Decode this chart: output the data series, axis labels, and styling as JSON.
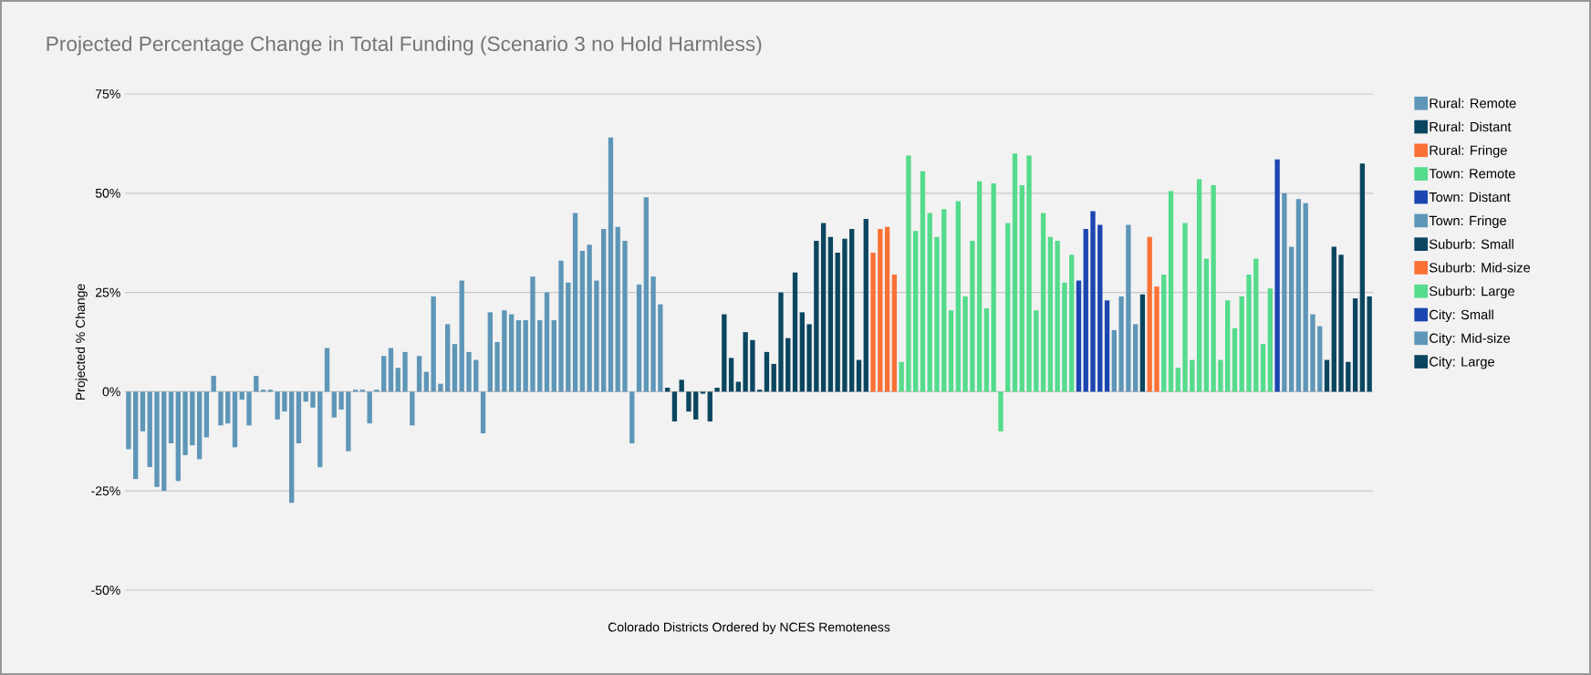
{
  "chart_data": {
    "type": "bar",
    "title": "Projected Percentage Change in Total Funding (Scenario 3 no Hold Harmless)",
    "xlabel": "Colorado Districts Ordered by NCES Remoteness",
    "ylabel": "Projected % Change",
    "categories": [
      null,
      null,
      null,
      null,
      null,
      null,
      null,
      null,
      null,
      null,
      null,
      null,
      null,
      null,
      null,
      null,
      null,
      null,
      null,
      null,
      null,
      null,
      null,
      null,
      null,
      null,
      null,
      null,
      null,
      null,
      null,
      null,
      null,
      null,
      null,
      null,
      null,
      null,
      null,
      null,
      null,
      null,
      null,
      null,
      null,
      null,
      null,
      null,
      null,
      null,
      null,
      null,
      null,
      null,
      null,
      null,
      null,
      null,
      null,
      null,
      null,
      null,
      null,
      null,
      null,
      null,
      null,
      null,
      null,
      null,
      null,
      null,
      null,
      null,
      null,
      null,
      null,
      null,
      null,
      null,
      null,
      null,
      null,
      null,
      null,
      null,
      null,
      null,
      null,
      null,
      null,
      null,
      null,
      null,
      null,
      null,
      null,
      null,
      null,
      null,
      null,
      null,
      null,
      null,
      null,
      null,
      null,
      null,
      null,
      null,
      null,
      null,
      null,
      null,
      null,
      null,
      null,
      null,
      null,
      null,
      null,
      null,
      null,
      null,
      null,
      null,
      null,
      null,
      null,
      null,
      null,
      null,
      null,
      null,
      null,
      null,
      null,
      null,
      null,
      null,
      null,
      null,
      null,
      null,
      null,
      null,
      null,
      null,
      null,
      null,
      null,
      null,
      null,
      null,
      null,
      null,
      null,
      null,
      null,
      null,
      null,
      null,
      null,
      null,
      null,
      null,
      null,
      null,
      null,
      null,
      null,
      null,
      null,
      null,
      null,
      null
    ],
    "ylim": [
      -50,
      75
    ],
    "yticks": [
      {
        "value": -50,
        "label": "-50%"
      },
      {
        "value": -25,
        "label": "-25%"
      },
      {
        "value": 0,
        "label": "0%"
      },
      {
        "value": 25,
        "label": "25%"
      },
      {
        "value": 50,
        "label": "50%"
      },
      {
        "value": 75,
        "label": "75%"
      }
    ],
    "grid": "y",
    "legend": "right",
    "series": [
      {
        "name": "Rural: Remote",
        "color": "#5e96b8",
        "values": [
          -14.5,
          -22,
          -10,
          -19,
          -24,
          -25,
          -13,
          -22.5,
          -16,
          -13.5,
          -17,
          -11.5,
          4,
          -8.5,
          -8,
          -14,
          -2,
          -8.5,
          4,
          0.5,
          0.5,
          -7,
          -5,
          -28,
          -13,
          -2.5,
          -4,
          -19,
          11,
          -6.5,
          -4.5,
          -15,
          0.5,
          0.5,
          -8,
          0.5,
          9,
          11,
          6,
          10,
          -8.5,
          9,
          5,
          24,
          2,
          17,
          12,
          28,
          10,
          8,
          -10.5,
          20,
          12.5,
          20.5,
          19.5,
          18,
          18,
          29,
          18,
          25,
          18,
          33,
          27.5,
          45,
          35.5,
          37,
          28,
          41,
          64,
          41.5,
          38,
          -13,
          27,
          49,
          29,
          22,
          null,
          null,
          null,
          null,
          null,
          null,
          null,
          null,
          null,
          null,
          null,
          null,
          null,
          null,
          null,
          null,
          null,
          null,
          null,
          null,
          null,
          null,
          null,
          null,
          null,
          null,
          null,
          null,
          null,
          null,
          null,
          null,
          null,
          null,
          null,
          null,
          null,
          null,
          null,
          null,
          null,
          null,
          null,
          null,
          null,
          null,
          null,
          null,
          null,
          null,
          null,
          null,
          null,
          null,
          null,
          null,
          null,
          null,
          null,
          null,
          null,
          null,
          null,
          null,
          null,
          null,
          null,
          null,
          null,
          null,
          null,
          null,
          null,
          null,
          null,
          null,
          null,
          null,
          null,
          null,
          null,
          null,
          null,
          null,
          null,
          null,
          null,
          null,
          null,
          null,
          null,
          null,
          null,
          null,
          null,
          null,
          null,
          null,
          null,
          null
        ]
      },
      {
        "name": "Rural: Distant",
        "color": "#0b4660",
        "values": [
          null,
          null,
          null,
          null,
          null,
          null,
          null,
          null,
          null,
          null,
          null,
          null,
          null,
          null,
          null,
          null,
          null,
          null,
          null,
          null,
          null,
          null,
          null,
          null,
          null,
          null,
          null,
          null,
          null,
          null,
          null,
          null,
          null,
          null,
          null,
          null,
          null,
          null,
          null,
          null,
          null,
          null,
          null,
          null,
          null,
          null,
          null,
          null,
          null,
          null,
          null,
          null,
          null,
          null,
          null,
          null,
          null,
          null,
          null,
          null,
          null,
          null,
          null,
          null,
          null,
          null,
          null,
          null,
          null,
          null,
          null,
          null,
          null,
          null,
          null,
          null,
          1,
          -7.5,
          3,
          -5,
          -7,
          -0.5,
          -7.5,
          1,
          19.5,
          8.5,
          2.5,
          15,
          13,
          0.5,
          10,
          7,
          25,
          13.5,
          30,
          20,
          17,
          38,
          42.5,
          39,
          35,
          38.5,
          41,
          8,
          43.5,
          null,
          null,
          null,
          null,
          null,
          null,
          null,
          null,
          null,
          null,
          null,
          null,
          null,
          null,
          null,
          null,
          null,
          null,
          null,
          null,
          null,
          null,
          null,
          null,
          null,
          null,
          null,
          null,
          null,
          null,
          null,
          null,
          null,
          null,
          null,
          null,
          null,
          null,
          null,
          null,
          null,
          null,
          null,
          null,
          null,
          null,
          null,
          null,
          null,
          null,
          null,
          null,
          null,
          null,
          null,
          null,
          null,
          null,
          null,
          null,
          null,
          null,
          null,
          null,
          null,
          null,
          null,
          null,
          null,
          null,
          null
        ]
      },
      {
        "name": "Rural: Fringe",
        "color": "#fb7135",
        "values": [
          null,
          null,
          null,
          null,
          null,
          null,
          null,
          null,
          null,
          null,
          null,
          null,
          null,
          null,
          null,
          null,
          null,
          null,
          null,
          null,
          null,
          null,
          null,
          null,
          null,
          null,
          null,
          null,
          null,
          null,
          null,
          null,
          null,
          null,
          null,
          null,
          null,
          null,
          null,
          null,
          null,
          null,
          null,
          null,
          null,
          null,
          null,
          null,
          null,
          null,
          null,
          null,
          null,
          null,
          null,
          null,
          null,
          null,
          null,
          null,
          null,
          null,
          null,
          null,
          null,
          null,
          null,
          null,
          null,
          null,
          null,
          null,
          null,
          null,
          null,
          null,
          null,
          null,
          null,
          null,
          null,
          null,
          null,
          null,
          null,
          null,
          null,
          null,
          null,
          null,
          null,
          null,
          null,
          null,
          null,
          null,
          null,
          null,
          null,
          null,
          null,
          null,
          null,
          null,
          null,
          35,
          41,
          41.5,
          29.5,
          null,
          null,
          null,
          null,
          null,
          null,
          null,
          null,
          null,
          null,
          null,
          null,
          null,
          null,
          null,
          null,
          null,
          null,
          null,
          null,
          null,
          null,
          null,
          null,
          null,
          null,
          null,
          null,
          null,
          null,
          null,
          null,
          null,
          null,
          null,
          null,
          null,
          null,
          null,
          null,
          null,
          null,
          null,
          null,
          null,
          null,
          null,
          null,
          null,
          null,
          null,
          null,
          null,
          null,
          null,
          null,
          null,
          null,
          null,
          null,
          null,
          null,
          null,
          null,
          null,
          null,
          null
        ]
      },
      {
        "name": "Town: Remote",
        "color": "#55db8c",
        "values": [
          null,
          null,
          null,
          null,
          null,
          null,
          null,
          null,
          null,
          null,
          null,
          null,
          null,
          null,
          null,
          null,
          null,
          null,
          null,
          null,
          null,
          null,
          null,
          null,
          null,
          null,
          null,
          null,
          null,
          null,
          null,
          null,
          null,
          null,
          null,
          null,
          null,
          null,
          null,
          null,
          null,
          null,
          null,
          null,
          null,
          null,
          null,
          null,
          null,
          null,
          null,
          null,
          null,
          null,
          null,
          null,
          null,
          null,
          null,
          null,
          null,
          null,
          null,
          null,
          null,
          null,
          null,
          null,
          null,
          null,
          null,
          null,
          null,
          null,
          null,
          null,
          null,
          null,
          null,
          null,
          null,
          null,
          null,
          null,
          null,
          null,
          null,
          null,
          null,
          null,
          null,
          null,
          null,
          null,
          null,
          null,
          null,
          null,
          null,
          null,
          null,
          null,
          null,
          null,
          null,
          null,
          null,
          null,
          null,
          7.5,
          59.5,
          40.5,
          55.5,
          45,
          39,
          46,
          20.5,
          48,
          24,
          38,
          53,
          21,
          52.5,
          -10,
          42.5,
          60,
          52,
          59.5,
          20.5,
          45,
          39,
          38,
          27.5,
          34.5,
          null,
          null,
          null,
          null,
          null,
          null,
          null,
          null,
          null,
          null,
          null,
          null,
          null,
          null,
          null,
          null,
          null,
          null,
          null,
          null,
          null,
          null,
          null,
          null,
          null,
          null,
          null,
          null,
          null,
          null,
          null,
          null,
          null,
          null,
          null,
          null,
          null,
          null,
          null,
          null,
          null,
          null
        ]
      },
      {
        "name": "Town: Distant",
        "color": "#1b45b0",
        "values": [
          null,
          null,
          null,
          null,
          null,
          null,
          null,
          null,
          null,
          null,
          null,
          null,
          null,
          null,
          null,
          null,
          null,
          null,
          null,
          null,
          null,
          null,
          null,
          null,
          null,
          null,
          null,
          null,
          null,
          null,
          null,
          null,
          null,
          null,
          null,
          null,
          null,
          null,
          null,
          null,
          null,
          null,
          null,
          null,
          null,
          null,
          null,
          null,
          null,
          null,
          null,
          null,
          null,
          null,
          null,
          null,
          null,
          null,
          null,
          null,
          null,
          null,
          null,
          null,
          null,
          null,
          null,
          null,
          null,
          null,
          null,
          null,
          null,
          null,
          null,
          null,
          null,
          null,
          null,
          null,
          null,
          null,
          null,
          null,
          null,
          null,
          null,
          null,
          null,
          null,
          null,
          null,
          null,
          null,
          null,
          null,
          null,
          null,
          null,
          null,
          null,
          null,
          null,
          null,
          null,
          null,
          null,
          null,
          null,
          null,
          null,
          null,
          null,
          null,
          null,
          null,
          null,
          null,
          null,
          null,
          null,
          null,
          null,
          null,
          null,
          null,
          null,
          null,
          null,
          null,
          null,
          null,
          null,
          null,
          28,
          41,
          45.5,
          42,
          23,
          null,
          null,
          null,
          null,
          null,
          null,
          null,
          null,
          null,
          null,
          null,
          null,
          null,
          null,
          null,
          null,
          null,
          null,
          null,
          null,
          null,
          null,
          null,
          null,
          null,
          null,
          null,
          null,
          null,
          null,
          null,
          null,
          null,
          null,
          null,
          null,
          null
        ]
      },
      {
        "name": "Town: Fringe",
        "color": "#5e96b8",
        "values": [
          null,
          null,
          null,
          null,
          null,
          null,
          null,
          null,
          null,
          null,
          null,
          null,
          null,
          null,
          null,
          null,
          null,
          null,
          null,
          null,
          null,
          null,
          null,
          null,
          null,
          null,
          null,
          null,
          null,
          null,
          null,
          null,
          null,
          null,
          null,
          null,
          null,
          null,
          null,
          null,
          null,
          null,
          null,
          null,
          null,
          null,
          null,
          null,
          null,
          null,
          null,
          null,
          null,
          null,
          null,
          null,
          null,
          null,
          null,
          null,
          null,
          null,
          null,
          null,
          null,
          null,
          null,
          null,
          null,
          null,
          null,
          null,
          null,
          null,
          null,
          null,
          null,
          null,
          null,
          null,
          null,
          null,
          null,
          null,
          null,
          null,
          null,
          null,
          null,
          null,
          null,
          null,
          null,
          null,
          null,
          null,
          null,
          null,
          null,
          null,
          null,
          null,
          null,
          null,
          null,
          null,
          null,
          null,
          null,
          null,
          null,
          null,
          null,
          null,
          null,
          null,
          null,
          null,
          null,
          null,
          null,
          null,
          null,
          null,
          null,
          null,
          null,
          null,
          null,
          null,
          null,
          null,
          null,
          null,
          null,
          null,
          null,
          null,
          null,
          15.5,
          24,
          42,
          17,
          null,
          null,
          null,
          null,
          null,
          null,
          null,
          null,
          null,
          null,
          null,
          null,
          null,
          null,
          null,
          null,
          null,
          null,
          null,
          null,
          null,
          null,
          null,
          null,
          null,
          null,
          null,
          null,
          null,
          null,
          null,
          null,
          null
        ]
      },
      {
        "name": "Suburb: Small",
        "color": "#0b4660",
        "values": [
          null,
          null,
          null,
          null,
          null,
          null,
          null,
          null,
          null,
          null,
          null,
          null,
          null,
          null,
          null,
          null,
          null,
          null,
          null,
          null,
          null,
          null,
          null,
          null,
          null,
          null,
          null,
          null,
          null,
          null,
          null,
          null,
          null,
          null,
          null,
          null,
          null,
          null,
          null,
          null,
          null,
          null,
          null,
          null,
          null,
          null,
          null,
          null,
          null,
          null,
          null,
          null,
          null,
          null,
          null,
          null,
          null,
          null,
          null,
          null,
          null,
          null,
          null,
          null,
          null,
          null,
          null,
          null,
          null,
          null,
          null,
          null,
          null,
          null,
          null,
          null,
          null,
          null,
          null,
          null,
          null,
          null,
          null,
          null,
          null,
          null,
          null,
          null,
          null,
          null,
          null,
          null,
          null,
          null,
          null,
          null,
          null,
          null,
          null,
          null,
          null,
          null,
          null,
          null,
          null,
          null,
          null,
          null,
          null,
          null,
          null,
          null,
          null,
          null,
          null,
          null,
          null,
          null,
          null,
          null,
          null,
          null,
          null,
          null,
          null,
          null,
          null,
          null,
          null,
          null,
          null,
          null,
          null,
          null,
          null,
          null,
          null,
          null,
          null,
          null,
          null,
          null,
          null,
          24.5,
          null,
          null,
          null,
          null,
          null,
          null,
          null,
          null,
          null,
          null,
          null,
          null,
          null,
          null,
          null,
          null,
          null,
          null,
          null,
          null,
          null,
          null,
          null,
          null,
          null,
          null,
          null,
          null,
          null,
          null,
          null,
          null
        ]
      },
      {
        "name": "Suburb: Mid-size",
        "color": "#fb7135",
        "values": [
          null,
          null,
          null,
          null,
          null,
          null,
          null,
          null,
          null,
          null,
          null,
          null,
          null,
          null,
          null,
          null,
          null,
          null,
          null,
          null,
          null,
          null,
          null,
          null,
          null,
          null,
          null,
          null,
          null,
          null,
          null,
          null,
          null,
          null,
          null,
          null,
          null,
          null,
          null,
          null,
          null,
          null,
          null,
          null,
          null,
          null,
          null,
          null,
          null,
          null,
          null,
          null,
          null,
          null,
          null,
          null,
          null,
          null,
          null,
          null,
          null,
          null,
          null,
          null,
          null,
          null,
          null,
          null,
          null,
          null,
          null,
          null,
          null,
          null,
          null,
          null,
          null,
          null,
          null,
          null,
          null,
          null,
          null,
          null,
          null,
          null,
          null,
          null,
          null,
          null,
          null,
          null,
          null,
          null,
          null,
          null,
          null,
          null,
          null,
          null,
          null,
          null,
          null,
          null,
          null,
          null,
          null,
          null,
          null,
          null,
          null,
          null,
          null,
          null,
          null,
          null,
          null,
          null,
          null,
          null,
          null,
          null,
          null,
          null,
          null,
          null,
          null,
          null,
          null,
          null,
          null,
          null,
          null,
          null,
          null,
          null,
          null,
          null,
          null,
          null,
          null,
          null,
          null,
          null,
          39,
          26.5,
          null,
          null,
          null,
          null,
          null,
          null,
          null,
          null,
          null,
          null,
          null,
          null,
          null,
          null,
          null,
          null,
          null,
          null,
          null,
          null,
          null,
          null,
          null,
          null,
          null,
          null,
          null,
          null,
          null,
          null
        ]
      },
      {
        "name": "Suburb: Large",
        "color": "#55db8c",
        "values": [
          null,
          null,
          null,
          null,
          null,
          null,
          null,
          null,
          null,
          null,
          null,
          null,
          null,
          null,
          null,
          null,
          null,
          null,
          null,
          null,
          null,
          null,
          null,
          null,
          null,
          null,
          null,
          null,
          null,
          null,
          null,
          null,
          null,
          null,
          null,
          null,
          null,
          null,
          null,
          null,
          null,
          null,
          null,
          null,
          null,
          null,
          null,
          null,
          null,
          null,
          null,
          null,
          null,
          null,
          null,
          null,
          null,
          null,
          null,
          null,
          null,
          null,
          null,
          null,
          null,
          null,
          null,
          null,
          null,
          null,
          null,
          null,
          null,
          null,
          null,
          null,
          null,
          null,
          null,
          null,
          null,
          null,
          null,
          null,
          null,
          null,
          null,
          null,
          null,
          null,
          null,
          null,
          null,
          null,
          null,
          null,
          null,
          null,
          null,
          null,
          null,
          null,
          null,
          null,
          null,
          null,
          null,
          null,
          null,
          null,
          null,
          null,
          null,
          null,
          null,
          null,
          null,
          null,
          null,
          null,
          null,
          null,
          null,
          null,
          null,
          null,
          null,
          null,
          null,
          null,
          null,
          null,
          null,
          null,
          null,
          null,
          null,
          null,
          null,
          null,
          null,
          null,
          null,
          null,
          null,
          null,
          29.5,
          50.5,
          6,
          42.5,
          8,
          53.5,
          33.5,
          52,
          8,
          23,
          16,
          24,
          29.5,
          33.5,
          12,
          26,
          null,
          null,
          null,
          null,
          null,
          null,
          null,
          null,
          null,
          null,
          null,
          null,
          null,
          null
        ]
      },
      {
        "name": "City: Small",
        "color": "#1b45b0",
        "values": [
          null,
          null,
          null,
          null,
          null,
          null,
          null,
          null,
          null,
          null,
          null,
          null,
          null,
          null,
          null,
          null,
          null,
          null,
          null,
          null,
          null,
          null,
          null,
          null,
          null,
          null,
          null,
          null,
          null,
          null,
          null,
          null,
          null,
          null,
          null,
          null,
          null,
          null,
          null,
          null,
          null,
          null,
          null,
          null,
          null,
          null,
          null,
          null,
          null,
          null,
          null,
          null,
          null,
          null,
          null,
          null,
          null,
          null,
          null,
          null,
          null,
          null,
          null,
          null,
          null,
          null,
          null,
          null,
          null,
          null,
          null,
          null,
          null,
          null,
          null,
          null,
          null,
          null,
          null,
          null,
          null,
          null,
          null,
          null,
          null,
          null,
          null,
          null,
          null,
          null,
          null,
          null,
          null,
          null,
          null,
          null,
          null,
          null,
          null,
          null,
          null,
          null,
          null,
          null,
          null,
          null,
          null,
          null,
          null,
          null,
          null,
          null,
          null,
          null,
          null,
          null,
          null,
          null,
          null,
          null,
          null,
          null,
          null,
          null,
          null,
          null,
          null,
          null,
          null,
          null,
          null,
          null,
          null,
          null,
          null,
          null,
          null,
          null,
          null,
          null,
          null,
          null,
          null,
          null,
          null,
          null,
          null,
          null,
          null,
          null,
          null,
          null,
          null,
          null,
          null,
          null,
          null,
          null,
          null,
          null,
          null,
          null,
          58.5,
          null,
          null,
          null,
          null,
          null,
          null,
          null,
          null,
          null,
          null,
          null,
          null,
          null
        ]
      },
      {
        "name": "City: Mid-size",
        "color": "#5e96b8",
        "values": [
          null,
          null,
          null,
          null,
          null,
          null,
          null,
          null,
          null,
          null,
          null,
          null,
          null,
          null,
          null,
          null,
          null,
          null,
          null,
          null,
          null,
          null,
          null,
          null,
          null,
          null,
          null,
          null,
          null,
          null,
          null,
          null,
          null,
          null,
          null,
          null,
          null,
          null,
          null,
          null,
          null,
          null,
          null,
          null,
          null,
          null,
          null,
          null,
          null,
          null,
          null,
          null,
          null,
          null,
          null,
          null,
          null,
          null,
          null,
          null,
          null,
          null,
          null,
          null,
          null,
          null,
          null,
          null,
          null,
          null,
          null,
          null,
          null,
          null,
          null,
          null,
          null,
          null,
          null,
          null,
          null,
          null,
          null,
          null,
          null,
          null,
          null,
          null,
          null,
          null,
          null,
          null,
          null,
          null,
          null,
          null,
          null,
          null,
          null,
          null,
          null,
          null,
          null,
          null,
          null,
          null,
          null,
          null,
          null,
          null,
          null,
          null,
          null,
          null,
          null,
          null,
          null,
          null,
          null,
          null,
          null,
          null,
          null,
          null,
          null,
          null,
          null,
          null,
          null,
          null,
          null,
          null,
          null,
          null,
          null,
          null,
          null,
          null,
          null,
          null,
          null,
          null,
          null,
          null,
          null,
          null,
          null,
          null,
          null,
          null,
          null,
          null,
          null,
          null,
          null,
          null,
          null,
          null,
          null,
          null,
          null,
          null,
          null,
          50,
          36.5,
          48.5,
          47.5,
          19.5,
          16.5,
          null,
          null,
          null,
          null,
          null,
          null,
          null
        ]
      },
      {
        "name": "City: Large",
        "color": "#0b4660",
        "values": [
          null,
          null,
          null,
          null,
          null,
          null,
          null,
          null,
          null,
          null,
          null,
          null,
          null,
          null,
          null,
          null,
          null,
          null,
          null,
          null,
          null,
          null,
          null,
          null,
          null,
          null,
          null,
          null,
          null,
          null,
          null,
          null,
          null,
          null,
          null,
          null,
          null,
          null,
          null,
          null,
          null,
          null,
          null,
          null,
          null,
          null,
          null,
          null,
          null,
          null,
          null,
          null,
          null,
          null,
          null,
          null,
          null,
          null,
          null,
          null,
          null,
          null,
          null,
          null,
          null,
          null,
          null,
          null,
          null,
          null,
          null,
          null,
          null,
          null,
          null,
          null,
          null,
          null,
          null,
          null,
          null,
          null,
          null,
          null,
          null,
          null,
          null,
          null,
          null,
          null,
          null,
          null,
          null,
          null,
          null,
          null,
          null,
          null,
          null,
          null,
          null,
          null,
          null,
          null,
          null,
          null,
          null,
          null,
          null,
          null,
          null,
          null,
          null,
          null,
          null,
          null,
          null,
          null,
          null,
          null,
          null,
          null,
          null,
          null,
          null,
          null,
          null,
          null,
          null,
          null,
          null,
          null,
          null,
          null,
          null,
          null,
          null,
          null,
          null,
          null,
          null,
          null,
          null,
          null,
          null,
          null,
          null,
          null,
          null,
          null,
          null,
          null,
          null,
          null,
          null,
          null,
          null,
          null,
          null,
          null,
          null,
          null,
          null,
          null,
          null,
          null,
          null,
          null,
          null,
          8,
          36.5,
          34.5,
          7.5,
          23.5,
          57.5,
          24
        ]
      }
    ]
  }
}
